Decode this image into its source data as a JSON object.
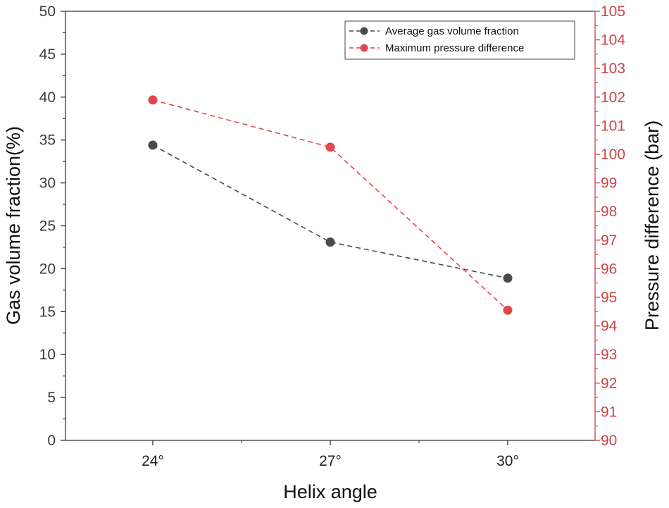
{
  "chart_data": {
    "type": "line",
    "categories": [
      "24°",
      "27°",
      "30°"
    ],
    "xlabel": "Helix angle",
    "ylabel_left": "Gas volume fraction(%)",
    "ylabel_right": "Pressure difference (bar)",
    "ylim_left": [
      0,
      50
    ],
    "ylim_right": [
      90,
      105
    ],
    "yticks_left": [
      "0",
      "5",
      "10",
      "15",
      "20",
      "25",
      "30",
      "35",
      "40",
      "45",
      "50"
    ],
    "yticks_right": [
      "90",
      "91",
      "92",
      "93",
      "94",
      "95",
      "96",
      "97",
      "98",
      "99",
      "100",
      "101",
      "102",
      "103",
      "104",
      "105"
    ],
    "series": [
      {
        "name": "Average gas volume fraction",
        "axis": "left",
        "color": "#4a4a4a",
        "values": [
          34.4,
          23.1,
          18.9
        ]
      },
      {
        "name": "Maximum pressure difference",
        "axis": "right",
        "color": "#e0474c",
        "values": [
          101.9,
          100.25,
          94.55
        ]
      }
    ],
    "legend_position": "top-right",
    "grid": false
  }
}
